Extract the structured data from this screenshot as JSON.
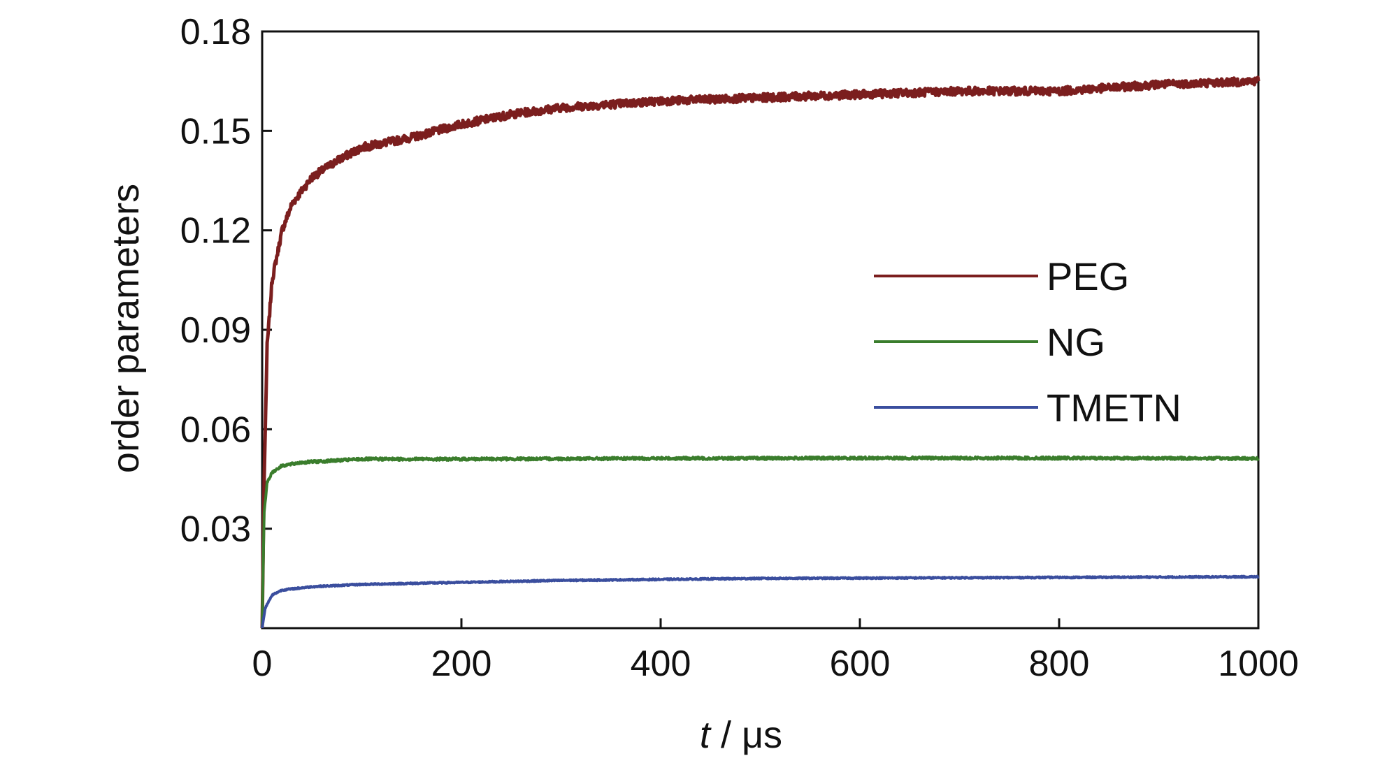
{
  "chart_data": {
    "type": "line",
    "title": "",
    "xlabel": {
      "italic": "t",
      "rest": " / μs"
    },
    "ylabel": "order parameters",
    "xlim": [
      0,
      1000
    ],
    "ylim": [
      0,
      0.18
    ],
    "xticks": [
      "0",
      "200",
      "400",
      "600",
      "800",
      "1000"
    ],
    "yticks": [
      "0.03",
      "0.06",
      "0.09",
      "0.12",
      "0.15",
      "0.18"
    ],
    "grid": false,
    "legend_position": "right, middle",
    "series": [
      {
        "name": "PEG",
        "color": "#7b1e1e",
        "noise": 0.0012,
        "points": [
          [
            0,
            0
          ],
          [
            2,
            0.045
          ],
          [
            5,
            0.085
          ],
          [
            10,
            0.105
          ],
          [
            20,
            0.12
          ],
          [
            30,
            0.128
          ],
          [
            50,
            0.136
          ],
          [
            75,
            0.141
          ],
          [
            100,
            0.145
          ],
          [
            150,
            0.148
          ],
          [
            200,
            0.152
          ],
          [
            250,
            0.155
          ],
          [
            300,
            0.157
          ],
          [
            400,
            0.159
          ],
          [
            500,
            0.16
          ],
          [
            600,
            0.161
          ],
          [
            700,
            0.162
          ],
          [
            800,
            0.162
          ],
          [
            900,
            0.164
          ],
          [
            1000,
            0.165
          ]
        ]
      },
      {
        "name": "NG",
        "color": "#3a7d2c",
        "noise": 0.0004,
        "points": [
          [
            0,
            0
          ],
          [
            2,
            0.035
          ],
          [
            5,
            0.044
          ],
          [
            10,
            0.047
          ],
          [
            20,
            0.049
          ],
          [
            40,
            0.05
          ],
          [
            70,
            0.0505
          ],
          [
            100,
            0.051
          ],
          [
            200,
            0.051
          ],
          [
            400,
            0.0512
          ],
          [
            600,
            0.0513
          ],
          [
            800,
            0.0513
          ],
          [
            1000,
            0.0512
          ]
        ]
      },
      {
        "name": "TMETN",
        "color": "#3a4e9e",
        "noise": 0.0002,
        "points": [
          [
            0,
            0
          ],
          [
            3,
            0.006
          ],
          [
            10,
            0.01
          ],
          [
            20,
            0.0115
          ],
          [
            50,
            0.0125
          ],
          [
            100,
            0.0132
          ],
          [
            200,
            0.0138
          ],
          [
            300,
            0.0144
          ],
          [
            500,
            0.015
          ],
          [
            700,
            0.0152
          ],
          [
            1000,
            0.0155
          ]
        ]
      }
    ]
  }
}
